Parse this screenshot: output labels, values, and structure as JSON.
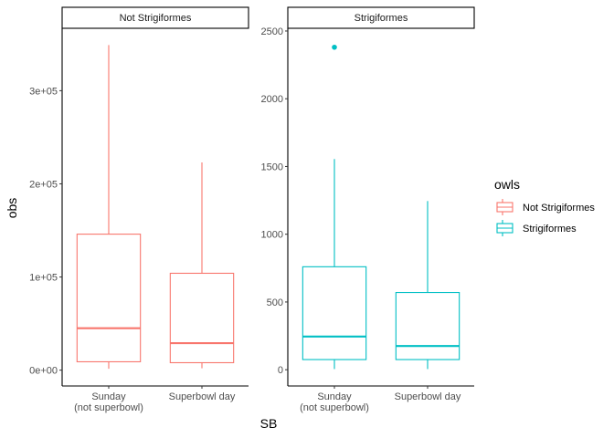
{
  "chart_data": {
    "type": "boxplot",
    "xlabel": "SB",
    "ylabel": "obs",
    "legend": {
      "title": "owls",
      "placement": "right",
      "entries": [
        {
          "name": "Not Strigiformes",
          "color": "#F8766D"
        },
        {
          "name": "Strigiformes",
          "color": "#00BFC4"
        }
      ]
    },
    "panels": [
      {
        "strip": "Not Strigiformes",
        "color": "#F8766D",
        "ylim": [
          -17000,
          367000
        ],
        "yticks": [
          0,
          100000,
          200000,
          300000
        ],
        "ytick_labels": [
          "0e+00",
          "1e+05",
          "2e+05",
          "3e+05"
        ],
        "categories": [
          {
            "line1": "Sunday",
            "line2": "(not superbowl)"
          },
          {
            "line1": "Superbowl day",
            "line2": ""
          }
        ],
        "boxes": [
          {
            "min": 1500,
            "q1": 9000,
            "median": 45000,
            "q3": 146000,
            "max": 349000,
            "outliers": []
          },
          {
            "min": 2000,
            "q1": 8000,
            "median": 29000,
            "q3": 104000,
            "max": 223000,
            "outliers": []
          }
        ]
      },
      {
        "strip": "Strigiformes",
        "color": "#00BFC4",
        "ylim": [
          -120,
          2520
        ],
        "yticks": [
          0,
          500,
          1000,
          1500,
          2000,
          2500
        ],
        "ytick_labels": [
          "0",
          "500",
          "1000",
          "1500",
          "2000",
          "2500"
        ],
        "categories": [
          {
            "line1": "Sunday",
            "line2": "(not superbowl)"
          },
          {
            "line1": "Superbowl day",
            "line2": ""
          }
        ],
        "boxes": [
          {
            "min": 5,
            "q1": 75,
            "median": 245,
            "q3": 760,
            "max": 1555,
            "outliers": [
              2380
            ]
          },
          {
            "min": 5,
            "q1": 75,
            "median": 175,
            "q3": 570,
            "max": 1245,
            "outliers": []
          }
        ]
      }
    ]
  }
}
